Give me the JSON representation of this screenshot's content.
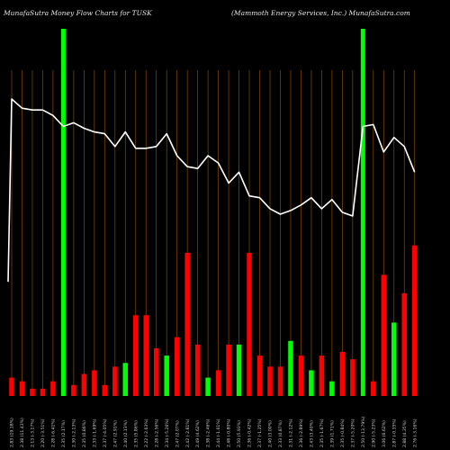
{
  "chart_data": {
    "type": "bar",
    "title": "MunafaSutra  Money Flow  Charts for TUSK",
    "subtitle": "(Mammoth Energy Services,  Inc.) MunafaSutra.com",
    "colors": {
      "up": "#00ff00",
      "down": "#ff0000",
      "line": "#ffffff",
      "grid": "#8a4a00",
      "background": "#000000"
    },
    "grid": true,
    "categories": [
      "2.83 (19.18%)",
      "2.38 (11.43%)",
      "2.13 (-3.17%)",
      "2.20 (-3.51%)",
      "2.28 (-6.41%)",
      "2.35 (2.17%)",
      "2.30 (-2.13%)",
      "2.35 (0.86%)",
      "2.33 (-1.69%)",
      "2.37 (-4.05%)",
      "2.47 (2.91%)",
      "2.40 (2.13%)",
      "2.35 (5.86%)",
      "2.22 (-2.63%)",
      "2.28 (-2.56%)",
      "2.34 (-5.26%)",
      "2.47 (2.07%)",
      "2.42 (-2.81%)",
      "2.49 (4.62%)",
      "2.38 (-2.46%)",
      "2.44 (-1.61%)",
      "2.48 (-0.80%)",
      "2.50 (5.93%)",
      "2.36 (-0.42%)",
      "2.37 (-1.25%)",
      "2.40 (3.00%)",
      "2.33 (0.87%)",
      "2.31 (-2.12%)",
      "2.36 (-2.89%)",
      "2.43 (3.40%)",
      "2.35 (-1.67%)",
      "2.39 (1.71%)",
      "2.35 (-0.84%)",
      "2.37 (-5.20%)",
      "2.50 (-13.79%)",
      "2.90 (-5.23%)",
      "3.06 (6.62%)",
      "2.87 (-0.35%)",
      "2.88 (4.35%)",
      "2.76 (-3.16%)"
    ],
    "price": [
      3.95,
      3.9,
      3.89,
      3.89,
      3.86,
      3.8,
      3.82,
      3.79,
      3.77,
      3.76,
      3.69,
      3.77,
      3.68,
      3.68,
      3.69,
      3.76,
      3.64,
      3.58,
      3.57,
      3.64,
      3.6,
      3.49,
      3.55,
      3.42,
      3.41,
      3.35,
      3.32,
      3.34,
      3.37,
      3.41,
      3.35,
      3.4,
      3.33,
      3.31,
      3.8,
      3.81,
      3.66,
      3.74,
      3.69,
      3.55
    ],
    "money_flow": [
      {
        "value": 5,
        "direction": "down"
      },
      {
        "value": 4,
        "direction": "down"
      },
      {
        "value": 2,
        "direction": "down"
      },
      {
        "value": 2,
        "direction": "down"
      },
      {
        "value": 4,
        "direction": "down"
      },
      {
        "value": 100,
        "direction": "up"
      },
      {
        "value": 3,
        "direction": "down"
      },
      {
        "value": 6,
        "direction": "down"
      },
      {
        "value": 7,
        "direction": "down"
      },
      {
        "value": 3,
        "direction": "down"
      },
      {
        "value": 8,
        "direction": "down"
      },
      {
        "value": 9,
        "direction": "up"
      },
      {
        "value": 22,
        "direction": "down"
      },
      {
        "value": 22,
        "direction": "down"
      },
      {
        "value": 13,
        "direction": "down"
      },
      {
        "value": 11,
        "direction": "up"
      },
      {
        "value": 16,
        "direction": "down"
      },
      {
        "value": 39,
        "direction": "down"
      },
      {
        "value": 14,
        "direction": "down"
      },
      {
        "value": 5,
        "direction": "up"
      },
      {
        "value": 7,
        "direction": "down"
      },
      {
        "value": 14,
        "direction": "down"
      },
      {
        "value": 14,
        "direction": "up"
      },
      {
        "value": 39,
        "direction": "down"
      },
      {
        "value": 11,
        "direction": "down"
      },
      {
        "value": 8,
        "direction": "down"
      },
      {
        "value": 8,
        "direction": "down"
      },
      {
        "value": 15,
        "direction": "up"
      },
      {
        "value": 11,
        "direction": "down"
      },
      {
        "value": 7,
        "direction": "up"
      },
      {
        "value": 11,
        "direction": "down"
      },
      {
        "value": 4,
        "direction": "up"
      },
      {
        "value": 12,
        "direction": "down"
      },
      {
        "value": 10,
        "direction": "down"
      },
      {
        "value": 100,
        "direction": "up"
      },
      {
        "value": 4,
        "direction": "down"
      },
      {
        "value": 33,
        "direction": "down"
      },
      {
        "value": 20,
        "direction": "up"
      },
      {
        "value": 28,
        "direction": "down"
      },
      {
        "value": 41,
        "direction": "down"
      }
    ]
  }
}
